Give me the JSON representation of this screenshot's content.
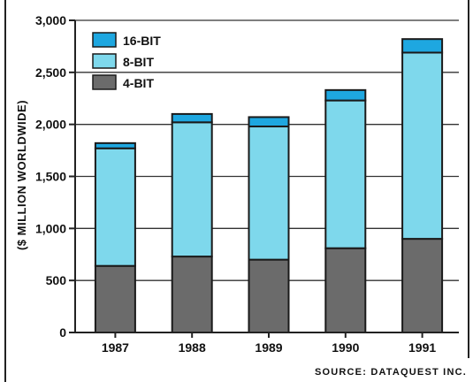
{
  "chart_data": {
    "type": "bar",
    "stacked": true,
    "categories": [
      "1987",
      "1988",
      "1989",
      "1990",
      "1991"
    ],
    "series": [
      {
        "name": "4-BIT",
        "values": [
          640,
          730,
          700,
          810,
          900
        ],
        "color": "#6b6b6b"
      },
      {
        "name": "8-BIT",
        "values": [
          1130,
          1290,
          1280,
          1420,
          1790
        ],
        "color": "#7ed8ec"
      },
      {
        "name": "16-BIT",
        "values": [
          50,
          80,
          90,
          100,
          130
        ],
        "color": "#1ea7e0"
      }
    ],
    "legend_order": [
      "16-BIT",
      "8-BIT",
      "4-BIT"
    ],
    "yticks": [
      "0",
      "500",
      "1,000",
      "1,500",
      "2,000",
      "2,500",
      "3,000"
    ],
    "ytick_values": [
      0,
      500,
      1000,
      1500,
      2000,
      2500,
      3000
    ],
    "ylim": [
      0,
      3000
    ],
    "ylabel": "($ MILLION WORLDWIDE)",
    "xlabel": "",
    "title": "",
    "grid": true,
    "legend_placement": "top-left",
    "source": "SOURCE: DATAQUEST INC."
  }
}
